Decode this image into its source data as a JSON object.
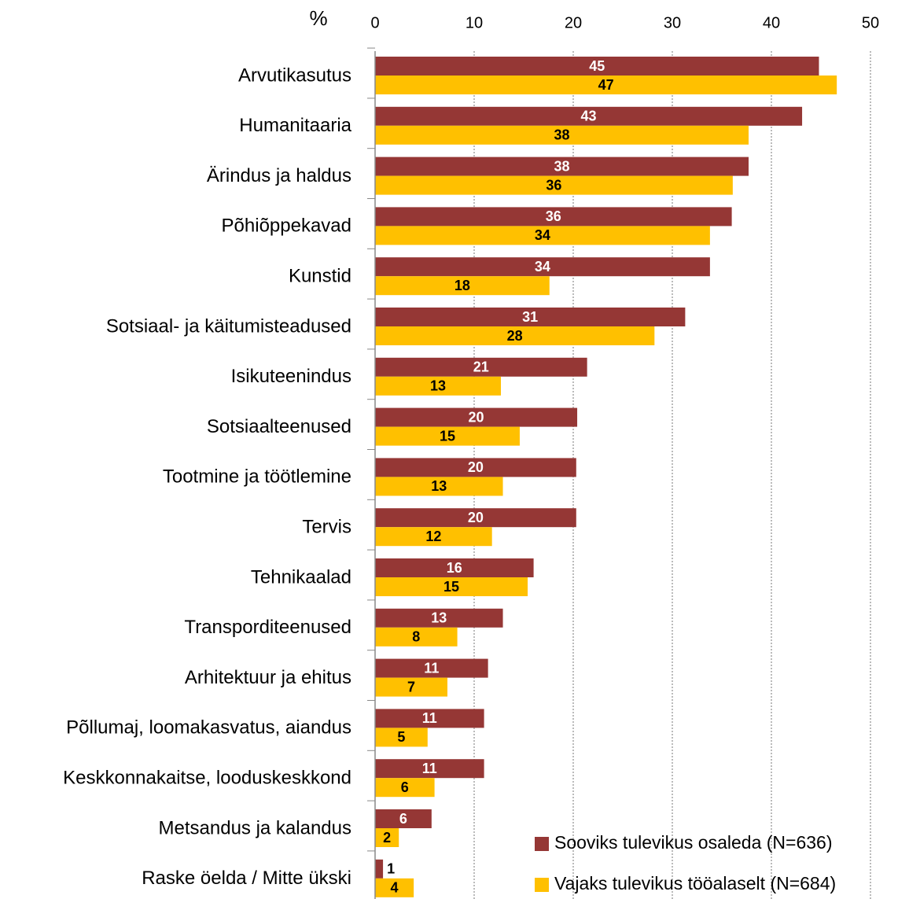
{
  "chart_data": {
    "type": "bar",
    "orientation": "horizontal",
    "xlabel": "%",
    "categories": [
      "Arvutikasutus",
      "Humanitaaria",
      "Ärindus ja haldus",
      "Põhiõppekavad",
      "Kunstid",
      "Sotsiaal- ja käitumisteadused",
      "Isikuteenindus",
      "Sotsiaalteenused",
      "Tootmine ja töötlemine",
      "Tervis",
      "Tehnikaalad",
      "Transporditeenused",
      "Arhitektuur ja ehitus",
      "Põllumaj, loomakasvatus, aiandus",
      "Keskkonnakaitse, looduskeskkond",
      "Metsandus ja kalandus",
      "Raske öelda / Mitte ükski"
    ],
    "series": [
      {
        "name": "Sooviks tulevikus osaleda (N=636)",
        "color": "#953735",
        "values": [
          44.8,
          43.1,
          37.7,
          36.0,
          33.8,
          31.3,
          21.4,
          20.4,
          20.3,
          20.3,
          16.0,
          12.9,
          11.4,
          11.0,
          11.0,
          5.7,
          0.8
        ],
        "value_labels": [
          "45",
          "43",
          "38",
          "36",
          "34",
          "31",
          "21",
          "20",
          "20",
          "20",
          "16",
          "13",
          "11",
          "11",
          "11",
          "6",
          "1"
        ]
      },
      {
        "name": "Vajaks tulevikus tööalaselt (N=684)",
        "color": "#ffc000",
        "values": [
          46.6,
          37.7,
          36.1,
          33.8,
          17.6,
          28.2,
          12.7,
          14.6,
          12.9,
          11.8,
          15.4,
          8.3,
          7.3,
          5.3,
          6.0,
          2.4,
          3.9
        ],
        "value_labels": [
          "47",
          "38",
          "36",
          "34",
          "18",
          "28",
          "13",
          "15",
          "13",
          "12",
          "15",
          "8",
          "7",
          "5",
          "6",
          "2",
          "4"
        ]
      }
    ],
    "xlim": [
      0,
      50
    ],
    "xticks": [
      0,
      10,
      20,
      30,
      40,
      50
    ],
    "grid": true,
    "legend": "lower right"
  }
}
